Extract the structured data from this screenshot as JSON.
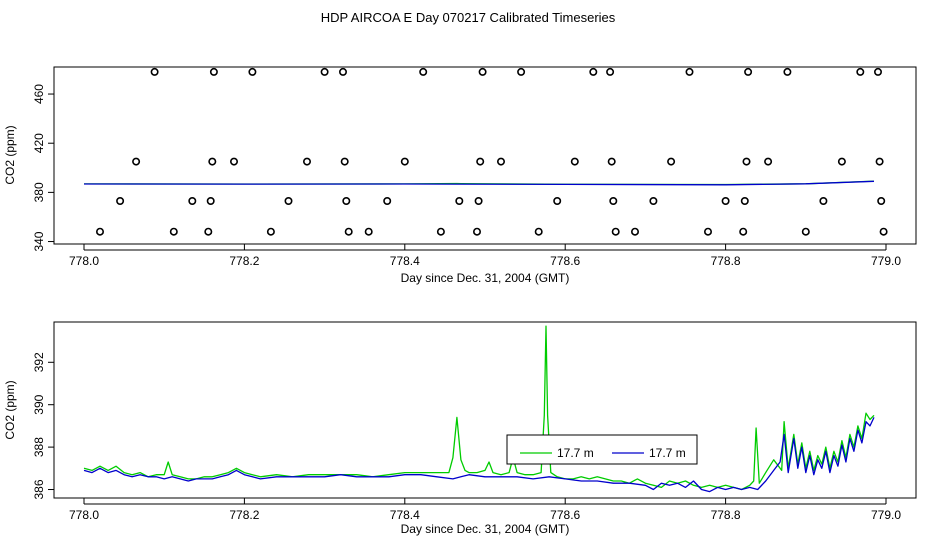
{
  "page_title": "HDP AIRCOA E  Day 070217  Calibrated Timeseries",
  "chart_data": [
    {
      "type": "scatter",
      "xlabel": "Day since Dec. 31, 2004 (GMT)",
      "ylabel": "CO2 (ppm)",
      "xlim": [
        778.0,
        779.0
      ],
      "ylim": [
        338,
        482
      ],
      "xticks": [
        "778.0",
        "778.2",
        "778.4",
        "778.6",
        "778.8",
        "779.0"
      ],
      "yticks": [
        "340",
        "380",
        "420",
        "460"
      ],
      "grid": false,
      "calibration_points": [
        {
          "x": 778.02,
          "y": 348
        },
        {
          "x": 778.045,
          "y": 373
        },
        {
          "x": 778.065,
          "y": 405
        },
        {
          "x": 778.088,
          "y": 478
        },
        {
          "x": 778.112,
          "y": 348
        },
        {
          "x": 778.135,
          "y": 373
        },
        {
          "x": 778.155,
          "y": 348
        },
        {
          "x": 778.158,
          "y": 373
        },
        {
          "x": 778.16,
          "y": 405
        },
        {
          "x": 778.162,
          "y": 478
        },
        {
          "x": 778.187,
          "y": 405
        },
        {
          "x": 778.21,
          "y": 478
        },
        {
          "x": 778.233,
          "y": 348
        },
        {
          "x": 778.255,
          "y": 373
        },
        {
          "x": 778.278,
          "y": 405
        },
        {
          "x": 778.3,
          "y": 478
        },
        {
          "x": 778.323,
          "y": 478
        },
        {
          "x": 778.325,
          "y": 405
        },
        {
          "x": 778.327,
          "y": 373
        },
        {
          "x": 778.33,
          "y": 348
        },
        {
          "x": 778.355,
          "y": 348
        },
        {
          "x": 778.378,
          "y": 373
        },
        {
          "x": 778.4,
          "y": 405
        },
        {
          "x": 778.423,
          "y": 478
        },
        {
          "x": 778.445,
          "y": 348
        },
        {
          "x": 778.468,
          "y": 373
        },
        {
          "x": 778.49,
          "y": 348
        },
        {
          "x": 778.492,
          "y": 373
        },
        {
          "x": 778.494,
          "y": 405
        },
        {
          "x": 778.497,
          "y": 478
        },
        {
          "x": 778.52,
          "y": 405
        },
        {
          "x": 778.545,
          "y": 478
        },
        {
          "x": 778.567,
          "y": 348
        },
        {
          "x": 778.59,
          "y": 373
        },
        {
          "x": 778.612,
          "y": 405
        },
        {
          "x": 778.635,
          "y": 478
        },
        {
          "x": 778.656,
          "y": 478
        },
        {
          "x": 778.658,
          "y": 405
        },
        {
          "x": 778.66,
          "y": 373
        },
        {
          "x": 778.663,
          "y": 348
        },
        {
          "x": 778.687,
          "y": 348
        },
        {
          "x": 778.71,
          "y": 373
        },
        {
          "x": 778.732,
          "y": 405
        },
        {
          "x": 778.755,
          "y": 478
        },
        {
          "x": 778.778,
          "y": 348
        },
        {
          "x": 778.8,
          "y": 373
        },
        {
          "x": 778.822,
          "y": 348
        },
        {
          "x": 778.824,
          "y": 373
        },
        {
          "x": 778.826,
          "y": 405
        },
        {
          "x": 778.828,
          "y": 478
        },
        {
          "x": 778.853,
          "y": 405
        },
        {
          "x": 778.877,
          "y": 478
        },
        {
          "x": 778.9,
          "y": 348
        },
        {
          "x": 778.922,
          "y": 373
        },
        {
          "x": 778.945,
          "y": 405
        },
        {
          "x": 778.968,
          "y": 478
        },
        {
          "x": 778.99,
          "y": 478
        },
        {
          "x": 778.992,
          "y": 405
        },
        {
          "x": 778.994,
          "y": 373
        },
        {
          "x": 778.997,
          "y": 348
        }
      ],
      "series": [
        {
          "name": "17.7 m",
          "color": "#00cc00",
          "x": [
            778.0,
            778.2,
            778.4,
            778.465,
            778.47,
            778.6,
            778.8,
            778.9,
            778.985
          ],
          "values": [
            386.9,
            386.8,
            386.9,
            387.2,
            387.1,
            386.6,
            386.4,
            387.0,
            389.2
          ]
        },
        {
          "name": "17.7 m",
          "color": "#0000cc",
          "x": [
            778.0,
            778.2,
            778.4,
            778.6,
            778.8,
            778.9,
            778.985
          ],
          "values": [
            386.8,
            386.7,
            386.8,
            386.5,
            386.2,
            387.0,
            389.0
          ]
        }
      ]
    },
    {
      "type": "line",
      "xlabel": "Day since Dec. 31, 2004 (GMT)",
      "ylabel": "CO2 (ppm)",
      "xlim": [
        778.0,
        779.0
      ],
      "ylim": [
        385.6,
        393.9
      ],
      "xticks": [
        "778.0",
        "778.2",
        "778.4",
        "778.6",
        "778.8",
        "779.0"
      ],
      "yticks": [
        "386",
        "388",
        "390",
        "392"
      ],
      "grid": false,
      "legend": "bottom-center",
      "series": [
        {
          "name": "17.7 m",
          "color": "#00cc00",
          "x": [
            778.0,
            778.01,
            778.02,
            778.03,
            778.04,
            778.05,
            778.06,
            778.07,
            778.08,
            778.09,
            778.1,
            778.105,
            778.11,
            778.12,
            778.13,
            778.14,
            778.15,
            778.16,
            778.17,
            778.18,
            778.19,
            778.2,
            778.21,
            778.22,
            778.24,
            778.26,
            778.28,
            778.3,
            778.32,
            778.34,
            778.36,
            778.38,
            778.4,
            778.42,
            778.44,
            778.455,
            778.46,
            778.465,
            778.47,
            778.475,
            778.48,
            778.49,
            778.5,
            778.505,
            778.51,
            778.52,
            778.53,
            778.535,
            778.54,
            778.55,
            778.56,
            778.57,
            778.574,
            778.576,
            778.578,
            778.582,
            778.59,
            778.6,
            778.61,
            778.62,
            778.63,
            778.64,
            778.65,
            778.66,
            778.67,
            778.68,
            778.69,
            778.7,
            778.71,
            778.72,
            778.73,
            778.74,
            778.75,
            778.76,
            778.77,
            778.78,
            778.79,
            778.8,
            778.81,
            778.82,
            778.83,
            778.835,
            778.838,
            778.842,
            778.85,
            778.86,
            778.87,
            778.873,
            778.878,
            778.885,
            778.89,
            778.895,
            778.9,
            778.905,
            778.91,
            778.915,
            778.92,
            778.925,
            778.93,
            778.935,
            778.94,
            778.945,
            778.95,
            778.955,
            778.96,
            778.965,
            778.97,
            778.975,
            778.98,
            778.985
          ],
          "values": [
            387.0,
            386.9,
            387.1,
            386.9,
            387.1,
            386.8,
            386.7,
            386.8,
            386.6,
            386.7,
            386.7,
            387.3,
            386.7,
            386.6,
            386.5,
            386.5,
            386.6,
            386.6,
            386.7,
            386.8,
            387.0,
            386.8,
            386.7,
            386.6,
            386.7,
            386.6,
            386.7,
            386.7,
            386.7,
            386.7,
            386.6,
            386.7,
            386.8,
            386.8,
            386.8,
            386.8,
            387.5,
            389.4,
            387.4,
            386.9,
            386.8,
            386.8,
            386.9,
            387.3,
            386.8,
            386.7,
            386.8,
            387.5,
            386.8,
            386.7,
            386.7,
            386.8,
            389.5,
            393.7,
            389.5,
            386.8,
            386.6,
            386.5,
            386.5,
            386.6,
            386.5,
            386.6,
            386.5,
            386.4,
            386.4,
            386.3,
            386.5,
            386.3,
            386.2,
            386.1,
            386.4,
            386.3,
            386.4,
            386.2,
            386.1,
            386.2,
            386.1,
            386.2,
            386.1,
            386.0,
            386.2,
            386.4,
            388.9,
            386.3,
            386.8,
            387.4,
            386.9,
            389.2,
            387.0,
            388.6,
            387.2,
            388.2,
            387.0,
            387.8,
            386.9,
            387.6,
            387.2,
            388.0,
            387.0,
            387.8,
            387.3,
            388.3,
            387.5,
            388.6,
            388.0,
            389.0,
            388.4,
            389.6,
            389.3,
            389.5
          ]
        },
        {
          "name": "17.7 m",
          "color": "#0000cc",
          "x": [
            778.0,
            778.01,
            778.02,
            778.03,
            778.04,
            778.05,
            778.06,
            778.07,
            778.08,
            778.09,
            778.1,
            778.11,
            778.12,
            778.13,
            778.14,
            778.15,
            778.16,
            778.17,
            778.18,
            778.19,
            778.2,
            778.21,
            778.22,
            778.24,
            778.26,
            778.28,
            778.3,
            778.32,
            778.34,
            778.36,
            778.38,
            778.4,
            778.42,
            778.44,
            778.46,
            778.47,
            778.48,
            778.5,
            778.52,
            778.54,
            778.56,
            778.58,
            778.6,
            778.62,
            778.64,
            778.66,
            778.68,
            778.7,
            778.71,
            778.72,
            778.73,
            778.74,
            778.75,
            778.76,
            778.77,
            778.78,
            778.79,
            778.8,
            778.81,
            778.82,
            778.83,
            778.84,
            778.85,
            778.86,
            778.868,
            778.873,
            778.878,
            778.885,
            778.89,
            778.895,
            778.9,
            778.905,
            778.91,
            778.915,
            778.92,
            778.925,
            778.93,
            778.935,
            778.94,
            778.945,
            778.95,
            778.955,
            778.96,
            778.965,
            778.97,
            778.975,
            778.98,
            778.985
          ],
          "values": [
            386.9,
            386.8,
            387.0,
            386.8,
            386.9,
            386.7,
            386.6,
            386.7,
            386.6,
            386.6,
            386.5,
            386.6,
            386.5,
            386.4,
            386.5,
            386.5,
            386.5,
            386.6,
            386.7,
            386.9,
            386.7,
            386.6,
            386.5,
            386.6,
            386.6,
            386.6,
            386.6,
            386.7,
            386.6,
            386.6,
            386.6,
            386.7,
            386.7,
            386.6,
            386.5,
            386.6,
            386.7,
            386.6,
            386.6,
            386.6,
            386.5,
            386.6,
            386.5,
            386.4,
            386.4,
            386.3,
            386.3,
            386.2,
            386.0,
            386.3,
            386.2,
            386.3,
            386.1,
            386.4,
            386.0,
            385.9,
            386.1,
            386.0,
            386.1,
            386.0,
            386.1,
            386.0,
            386.4,
            386.9,
            387.3,
            388.6,
            386.8,
            388.4,
            387.0,
            388.0,
            386.8,
            387.6,
            386.7,
            387.4,
            387.0,
            387.8,
            386.8,
            387.6,
            387.1,
            388.1,
            387.3,
            388.4,
            387.8,
            388.8,
            388.2,
            389.2,
            389.0,
            389.4
          ]
        }
      ]
    }
  ]
}
